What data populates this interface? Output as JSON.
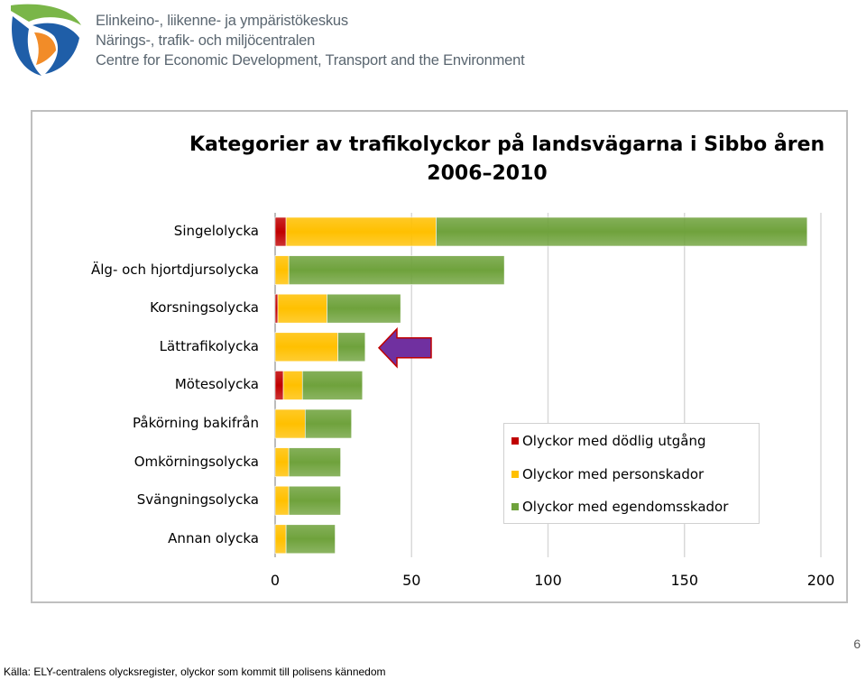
{
  "header": {
    "org_fi": "Elinkeino-, liikenne- ja ympäristökeskus",
    "org_sv": "Närings-, trafik- och miljöcentralen",
    "org_en": "Centre for Economic Development, Transport and the Environment"
  },
  "chart_data": {
    "type": "bar",
    "orientation": "horizontal",
    "stacked": true,
    "title_line1": "Kategorier av trafikolyckor på landsvägarna i Sibbo åren",
    "title_line2": "2006–2010",
    "categories": [
      "Singelolycka",
      "Älg- och hjortdjursolycka",
      "Korsningsolycka",
      "Lättrafikolycka",
      "Mötesolycka",
      "Påkörning bakifrån",
      "Omkörningsolycka",
      "Svängningsolycka",
      "Annan olycka"
    ],
    "series": [
      {
        "name": "Olyckor med dödlig utgång",
        "color": "#c00000",
        "values": [
          4,
          0,
          1,
          0,
          3,
          0,
          0,
          0,
          0
        ]
      },
      {
        "name": "Olyckor med personskador",
        "color": "#ffc000",
        "values": [
          55,
          5,
          18,
          23,
          7,
          11,
          5,
          5,
          4
        ]
      },
      {
        "name": "Olyckor med egendomsskador",
        "color": "#6fa23c",
        "values": [
          136,
          79,
          27,
          10,
          22,
          17,
          19,
          19,
          18
        ]
      }
    ],
    "xlim": [
      0,
      200
    ],
    "xticks": [
      "0",
      "50",
      "100",
      "150",
      "200"
    ],
    "grid": true,
    "legend_position": "bottom-right",
    "annotation": "arrow pointing at Lättrafikolycka"
  },
  "footer": {
    "page_number": "6",
    "source": "Källa: ELY-centralens olycksregister, olyckor som kommit till polisens kännedom"
  },
  "colors": {
    "arrow_fill": "#7030a0",
    "arrow_stroke": "#c00000",
    "logo_green": "#7ab648",
    "logo_blue": "#1f5ea8",
    "logo_orange": "#f28c28"
  }
}
